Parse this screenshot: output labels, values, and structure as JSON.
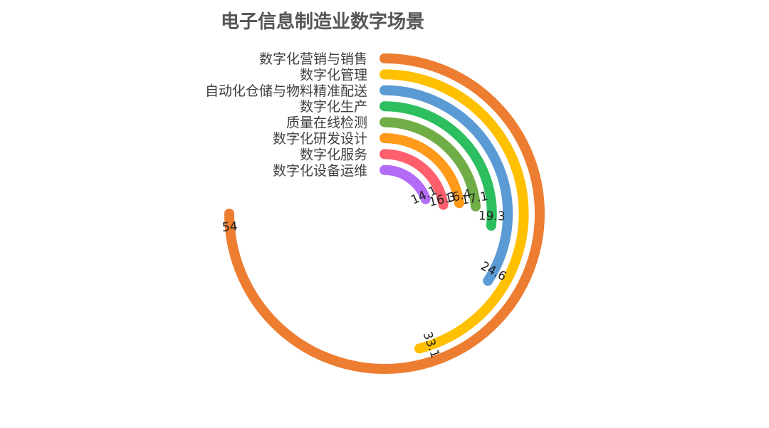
{
  "chart_data": {
    "type": "radial-bar",
    "title": "电子信息制造业数字场景",
    "max_value": 72,
    "categories": [
      "数字化营销与销售",
      "数字化管理",
      "自动化仓储与物料精准配送",
      "数字化生产",
      "质量在线检测",
      "数字化研发设计",
      "数字化服务",
      "数字化设备运维"
    ],
    "values": [
      54,
      33.1,
      24.6,
      19.3,
      17.1,
      16.4,
      16.3,
      14.1
    ],
    "colors": [
      "#ED7D31",
      "#FFC000",
      "#5B9BD5",
      "#2DBF5F",
      "#70AD47",
      "#FF9A1A",
      "#FF5F6D",
      "#B36CF7"
    ]
  }
}
